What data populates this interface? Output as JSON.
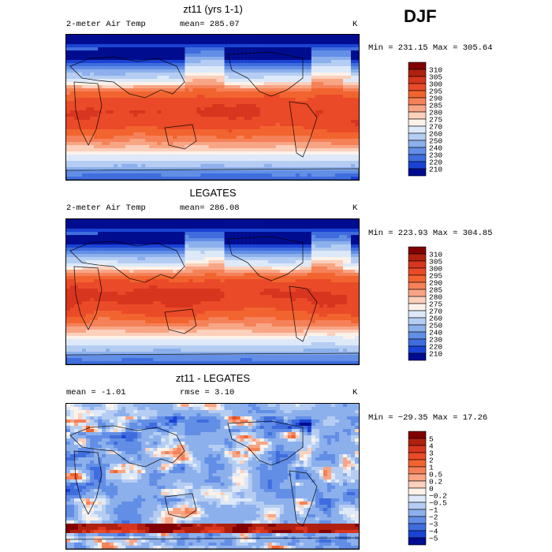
{
  "season": "DJF",
  "panels": [
    {
      "title": "zt11 (yrs 1-1)",
      "left_label": "2-meter Air Temp",
      "mid_label": "mean= 285.07",
      "units": "K",
      "minmax": "Min = 231.15 Max = 305.64",
      "kind": "abs"
    },
    {
      "title": "LEGATES",
      "left_label": "2-meter Air Temp",
      "mid_label": "mean= 286.08",
      "units": "K",
      "minmax": "Min = 223.93 Max = 304.85",
      "kind": "abs"
    },
    {
      "title": "zt11 - LEGATES",
      "left_label": "mean =   -1.01",
      "mid_label": "rmse =    3.10",
      "units": "K",
      "minmax": "Min = −29.35 Max =  17.26",
      "kind": "diff"
    }
  ],
  "chart_data": [
    {
      "type": "heatmap",
      "title": "zt11 (yrs 1-1)",
      "variable": "2-meter Air Temp",
      "units": "K",
      "mean": 285.07,
      "min": 231.15,
      "max": 305.64,
      "colorbar": {
        "levels": [
          "310",
          "305",
          "300",
          "295",
          "290",
          "285",
          "280",
          "275",
          "270",
          "260",
          "250",
          "240",
          "230",
          "220",
          "210"
        ],
        "colors": [
          "#800000",
          "#b0200f",
          "#d8351f",
          "#ea4a28",
          "#f2642f",
          "#f58158",
          "#f8a585",
          "#fbd0bc",
          "#fdf2ea",
          "#dde9f8",
          "#b5cdf2",
          "#8cb0ec",
          "#628ee6",
          "#3f6ddd",
          "#1a43d4",
          "#000c8f"
        ]
      }
    },
    {
      "type": "heatmap",
      "title": "LEGATES",
      "variable": "2-meter Air Temp",
      "units": "K",
      "mean": 286.08,
      "min": 223.93,
      "max": 304.85,
      "colorbar": {
        "levels": [
          "310",
          "305",
          "300",
          "295",
          "290",
          "285",
          "280",
          "275",
          "270",
          "260",
          "250",
          "240",
          "230",
          "220",
          "210"
        ],
        "colors": [
          "#800000",
          "#b0200f",
          "#d8351f",
          "#ea4a28",
          "#f2642f",
          "#f58158",
          "#f8a585",
          "#fbd0bc",
          "#fdf2ea",
          "#dde9f8",
          "#b5cdf2",
          "#8cb0ec",
          "#628ee6",
          "#3f6ddd",
          "#1a43d4",
          "#000c8f"
        ]
      }
    },
    {
      "type": "heatmap",
      "title": "zt11 - LEGATES",
      "units": "K",
      "mean": -1.01,
      "rmse": 3.1,
      "min": -29.35,
      "max": 17.26,
      "colorbar": {
        "levels": [
          "5",
          "4",
          "3",
          "2",
          "1",
          "0.5",
          "0.2",
          "0",
          "−0.2",
          "−0.5",
          "−1",
          "−2",
          "−3",
          "−4",
          "−5"
        ],
        "colors": [
          "#800000",
          "#b0200f",
          "#d8351f",
          "#ea4a28",
          "#f2642f",
          "#f58158",
          "#f8a585",
          "#fbd0bc",
          "#fdf2ea",
          "#dde9f8",
          "#b5cdf2",
          "#8cb0ec",
          "#628ee6",
          "#3f6ddd",
          "#1a43d4",
          "#000c8f"
        ]
      }
    }
  ]
}
